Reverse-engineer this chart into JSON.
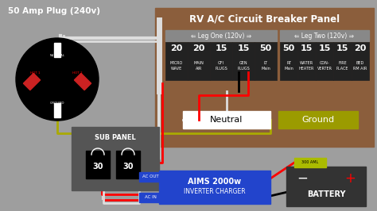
{
  "bg_color": "#9e9e9e",
  "title_50amp": "50 Amp Plug (240v)",
  "title_rv": "RV A/C Circuit Breaker Panel",
  "panel_bg": "#8B5E3C",
  "panel_header_bg": "#888888",
  "breaker_bg": "#222222",
  "neutral_color": "#ffffff",
  "ground_color": "#9B9B00",
  "sub_panel_bg": "#555555",
  "inverter_bg": "#2244cc",
  "battery_bg": "#333333",
  "wire_red": "#ff0000",
  "wire_black": "#111111",
  "wire_white": "#dddddd",
  "wire_yellow": "#aaaa00",
  "leg_one_breakers": [
    "20\nMICRO\nWAVE",
    "20\nMAIN\nAIR",
    "15\nGFI\nPLUGS",
    "15\nGEN\nPLUGS",
    "50\nLT\nMain"
  ],
  "leg_two_breakers": [
    "50\nRT\nMain",
    "15\nWATER\nHEATER",
    "15\nCON-\nVERTER",
    "15\nFIRE\nPLACE",
    "20\nBED\nRM AIR"
  ]
}
